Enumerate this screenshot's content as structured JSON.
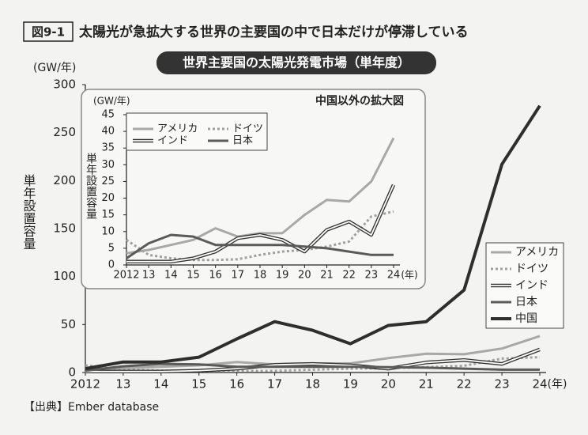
{
  "figure_label": "図9-1",
  "heading": "太陽光が急拡大する世界の主要国の中で日本だけが停滞している",
  "source": "【出典】Ember database",
  "chart_data": [
    {
      "type": "line",
      "title": "世界主要国の太陽光発電市場（単年度）",
      "y_unit": "(GW/年)",
      "y_label": "単年設置容量",
      "x_unit": "(年)",
      "categories": [
        "2012",
        "13",
        "14",
        "15",
        "16",
        "17",
        "18",
        "19",
        "20",
        "21",
        "22",
        "23",
        "24"
      ],
      "ylim": [
        0,
        300
      ],
      "yticks": [
        0,
        50,
        100,
        150,
        200,
        250,
        300
      ],
      "legend": "bottom-right",
      "series": [
        {
          "name": "アメリカ",
          "color": "#a8a8a8",
          "style": "solid",
          "values": [
            3.5,
            4.5,
            6,
            7.5,
            11,
            8.5,
            9.5,
            9.5,
            15,
            19.5,
            19,
            25,
            38
          ]
        },
        {
          "name": "ドイツ",
          "color": "#a0a0a0",
          "style": "dotted",
          "values": [
            7.5,
            3,
            2,
            1.5,
            1.5,
            1.7,
            3,
            4,
            4.5,
            5.5,
            7,
            14.5,
            16
          ]
        },
        {
          "name": "インド",
          "color": "#333333",
          "style": "double",
          "values": [
            1,
            1,
            1,
            2,
            4,
            8,
            9,
            7.5,
            4,
            10.5,
            13,
            9,
            24
          ]
        },
        {
          "name": "日本",
          "color": "#5a5a5a",
          "style": "solid",
          "values": [
            2,
            6.5,
            9,
            8.5,
            6,
            6,
            6,
            6,
            5.5,
            5,
            4,
            3,
            3
          ]
        },
        {
          "name": "中国",
          "color": "#2e2e2e",
          "style": "thick",
          "values": [
            4,
            11,
            11,
            16,
            35,
            53,
            44,
            30,
            49,
            53,
            86,
            217,
            278
          ]
        }
      ]
    },
    {
      "type": "line",
      "title": "中国以外の拡大図",
      "y_unit": "(GW/年)",
      "y_label": "単年設置容量",
      "x_unit": "(年)",
      "categories": [
        "2012",
        "13",
        "14",
        "15",
        "16",
        "17",
        "18",
        "19",
        "20",
        "21",
        "22",
        "23",
        "24"
      ],
      "ylim": [
        0,
        45
      ],
      "yticks": [
        0,
        5,
        10,
        15,
        20,
        25,
        30,
        35,
        40,
        45
      ],
      "legend": "top-left",
      "series": [
        {
          "name": "アメリカ",
          "color": "#a8a8a8",
          "style": "solid",
          "values": [
            3.5,
            4.5,
            6,
            7.5,
            11,
            8.5,
            9.5,
            9.5,
            15,
            19.5,
            19,
            25,
            38
          ]
        },
        {
          "name": "ドイツ",
          "color": "#a0a0a0",
          "style": "dotted",
          "values": [
            7.5,
            3,
            2,
            1.5,
            1.5,
            1.7,
            3,
            4,
            4.5,
            5.5,
            7,
            14.5,
            16
          ]
        },
        {
          "name": "インド",
          "color": "#333333",
          "style": "double",
          "values": [
            1,
            1,
            1,
            2,
            4,
            8,
            9,
            7.5,
            4,
            10.5,
            13,
            9,
            24
          ]
        },
        {
          "name": "日本",
          "color": "#5a5a5a",
          "style": "solid",
          "values": [
            2,
            6.5,
            9,
            8.5,
            6,
            6,
            6,
            6,
            5.5,
            5,
            4,
            3,
            3
          ]
        }
      ]
    }
  ]
}
